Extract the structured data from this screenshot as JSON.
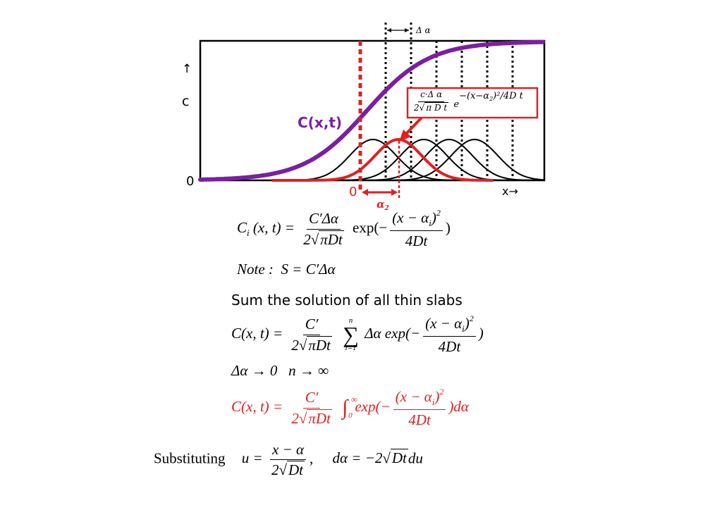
{
  "figure": {
    "delta_alpha_label": "Δ α",
    "y_axis_arrow": "↑",
    "y_axis_label": "c",
    "y_zero_label": "0",
    "curve_label": "C(x,t)",
    "x_zero_label": "0",
    "x_axis_label": "x→",
    "alpha2_label": "α",
    "alpha2_sub": "2",
    "inset": {
      "num": "c·Δ α",
      "den_coef": "2",
      "den_root": "π D t",
      "e": "e",
      "exponent": "−(x−α",
      "exponent_sub": "2",
      "exponent_tail": ")²/4D t"
    },
    "colors": {
      "purple": "#7b1fa2",
      "red": "#e02020",
      "black": "#000000"
    }
  },
  "eq1": {
    "lhs": "C",
    "lhs_sub": "i",
    "lhs_args": "(x, t) =",
    "frac_num": "C′Δα",
    "frac_den_coef": "2",
    "frac_den_root": "πDt",
    "exp": "exp(−",
    "inner_num": "(x − α",
    "inner_num_sub": "i",
    "inner_num_tail": ")",
    "inner_num_sup": "2",
    "inner_den": "4Dt",
    "close": ")"
  },
  "note": {
    "label": "Note :",
    "eq": "S = C′Δα"
  },
  "heading": "Sum the solution of all thin slabs",
  "eq2": {
    "lhs": "C(x, t) =",
    "frac_num": "C′",
    "frac_den_coef": "2",
    "frac_den_root": "πDt",
    "sum_top": "n",
    "sum_sym": "∑",
    "sum_bottom": "i=1",
    "term": "Δα exp(−",
    "inner_num": "(x − α",
    "inner_num_sub": "i",
    "inner_num_tail": ")",
    "inner_num_sup": "2",
    "inner_den": "4Dt",
    "close": ")"
  },
  "limits": {
    "a": "Δα → 0",
    "b": "n → ∞"
  },
  "eq3": {
    "lhs": "C(x, t) =",
    "frac_num": "C′",
    "frac_den_coef": "2",
    "frac_den_root": "πDt",
    "int_sym": "∫",
    "int_top": "∞",
    "int_bottom": "0",
    "term": "exp(−",
    "inner_num": "(x − α",
    "inner_num_sub": "i",
    "inner_num_tail": ")",
    "inner_num_sup": "2",
    "inner_den": "4Dt",
    "close": ")dα"
  },
  "subst": {
    "label": "Substituting",
    "u": "u =",
    "u_num": "x − α",
    "u_den_coef": "2",
    "u_den_root": "Dt",
    "comma": ",",
    "dalpha": "dα = −2",
    "dalpha_root": "Dt",
    "du": "du"
  }
}
